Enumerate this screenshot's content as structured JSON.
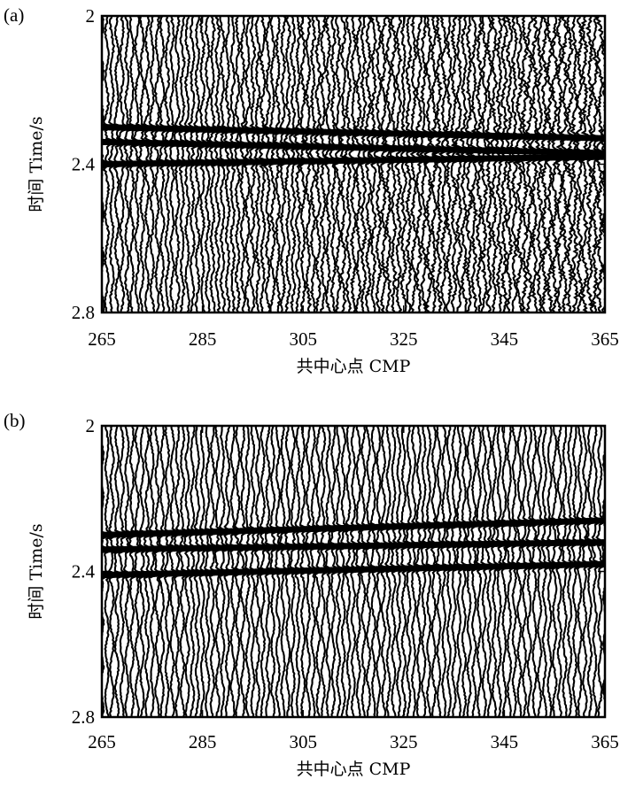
{
  "chart_data": [
    {
      "panel_label": "(a)",
      "type": "seismic-wiggle",
      "xlabel": "共中心点 CMP",
      "ylabel": "时间 Time/s",
      "xlim": [
        265,
        365
      ],
      "ylim": [
        2.8,
        2.0
      ],
      "xticks": [
        265,
        285,
        305,
        325,
        345,
        365
      ],
      "yticks": [
        2,
        2.4,
        2.8
      ],
      "xtick_labels": [
        "265",
        "285",
        "305",
        "325",
        "345",
        "365"
      ],
      "ytick_labels": [
        "2",
        "2.4",
        "2.8"
      ],
      "traces": 101,
      "reflectors": [
        {
          "time_at_265": 2.3,
          "time_at_365": 2.33
        },
        {
          "time_at_265": 2.34,
          "time_at_365": 2.37
        },
        {
          "time_at_265": 2.4,
          "time_at_365": 2.38
        }
      ],
      "noise": "high, increasing toward CMP 365"
    },
    {
      "panel_label": "(b)",
      "type": "seismic-wiggle",
      "xlabel": "共中心点 CMP",
      "ylabel": "时间 Time/s",
      "xlim": [
        265,
        365
      ],
      "ylim": [
        2.8,
        2.0
      ],
      "xticks": [
        265,
        285,
        305,
        325,
        345,
        365
      ],
      "yticks": [
        2,
        2.4,
        2.8
      ],
      "xtick_labels": [
        "265",
        "285",
        "305",
        "325",
        "345",
        "365"
      ],
      "ytick_labels": [
        "2",
        "2.4",
        "2.8"
      ],
      "traces": 101,
      "reflectors": [
        {
          "time_at_265": 2.3,
          "time_at_365": 2.26
        },
        {
          "time_at_265": 2.34,
          "time_at_365": 2.32
        },
        {
          "time_at_265": 2.41,
          "time_at_365": 2.38
        }
      ],
      "noise": "low (denoised)"
    }
  ]
}
